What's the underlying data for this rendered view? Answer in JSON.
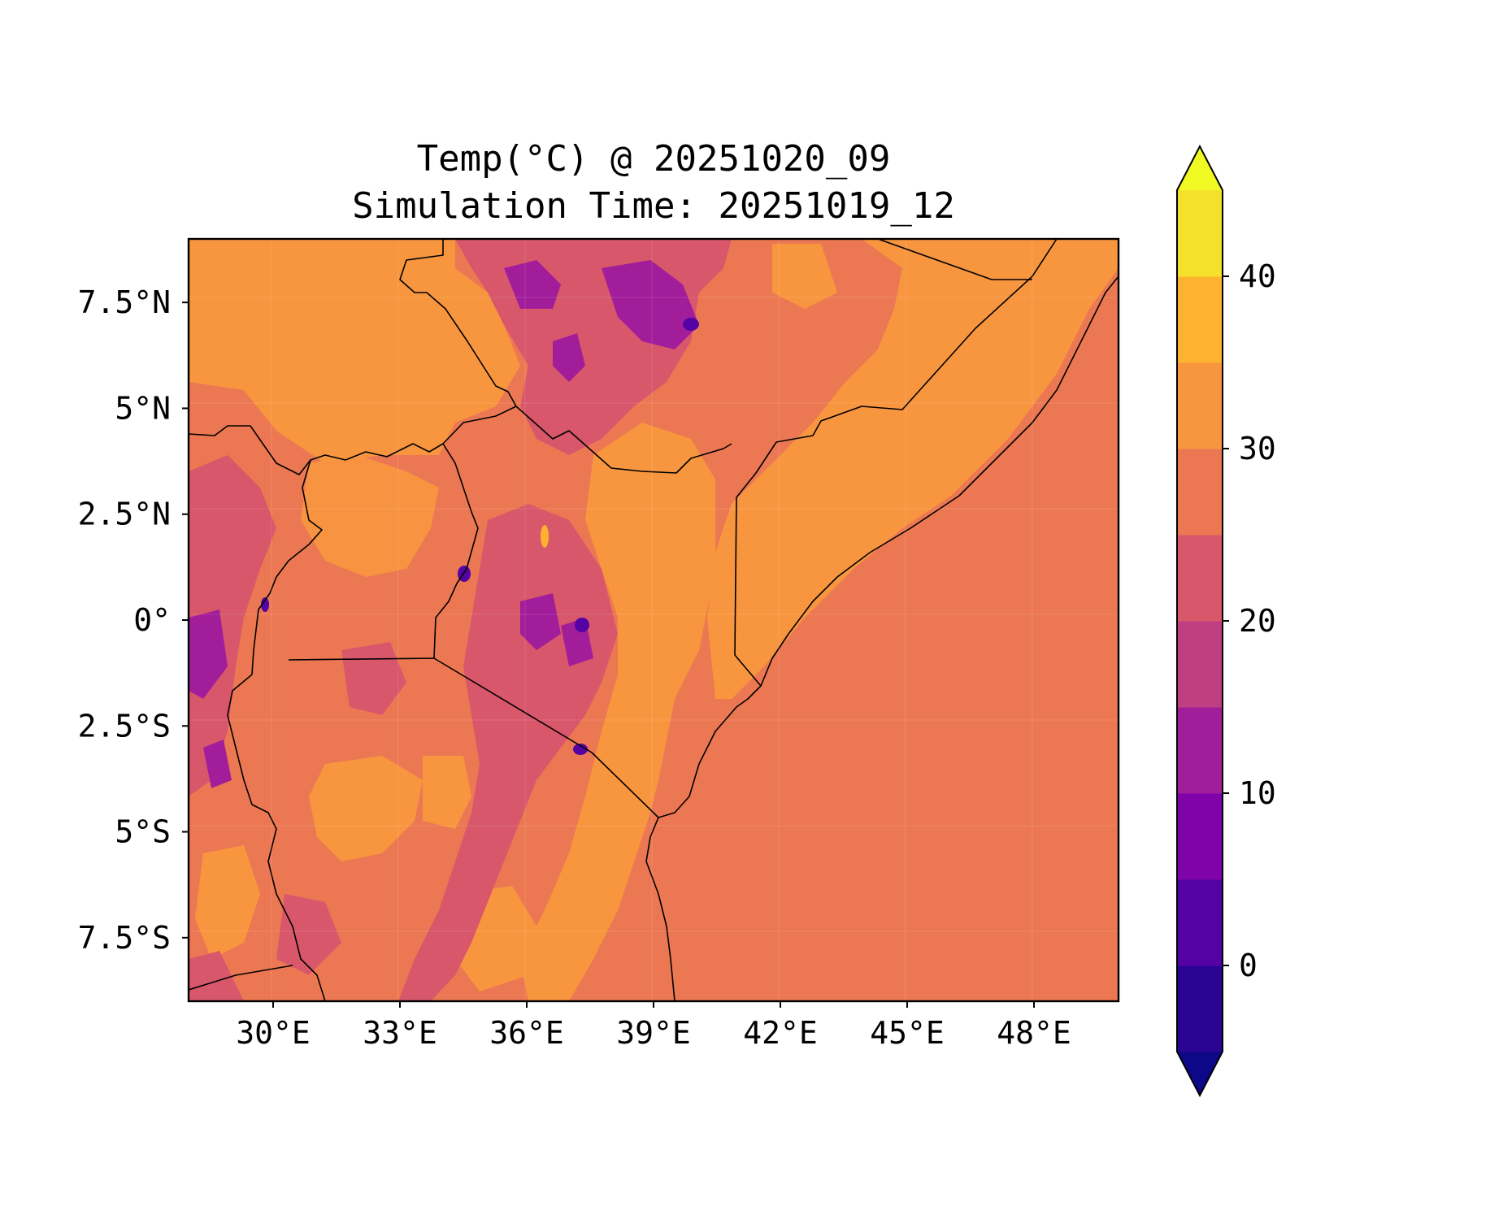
{
  "chart_data": {
    "type": "heatmap",
    "title_line1": "Temp(°C) @ 20251020_09",
    "title_line2": "Simulation Time: 20251019_12",
    "x_ticks": [
      "30°E",
      "33°E",
      "36°E",
      "39°E",
      "42°E",
      "45°E",
      "48°E"
    ],
    "x_tick_values": [
      30,
      33,
      36,
      39,
      42,
      45,
      48
    ],
    "y_ticks": [
      "7.5°N",
      "5°N",
      "2.5°N",
      "0°",
      "2.5°S",
      "5°S",
      "7.5°S"
    ],
    "y_tick_values": [
      7.5,
      5,
      2.5,
      0,
      -2.5,
      -5,
      -7.5
    ],
    "xlim": [
      28.0,
      50.0
    ],
    "ylim": [
      -9.0,
      9.0
    ],
    "colorbar": {
      "ticks": [
        "40",
        "30",
        "20",
        "10",
        "0"
      ],
      "tick_values": [
        40,
        30,
        20,
        10,
        0
      ],
      "levels": [
        -5,
        0,
        5,
        10,
        15,
        20,
        25,
        30,
        35,
        40,
        45
      ],
      "extend": "both",
      "colors": [
        "#0d0887",
        "#2a0593",
        "#5502a4",
        "#7e03a8",
        "#a21d9a",
        "#c03f83",
        "#d8576b",
        "#ec7853",
        "#f8963f",
        "#fdb32f",
        "#f3e12c",
        "#f0f921"
      ]
    },
    "colormap": "plasma",
    "dominant_colors": {
      "land_warm": "#f8963f",
      "ocean": "#ec7853",
      "highland": "#d8576b",
      "cold_peaks": "#7e03a8"
    }
  }
}
